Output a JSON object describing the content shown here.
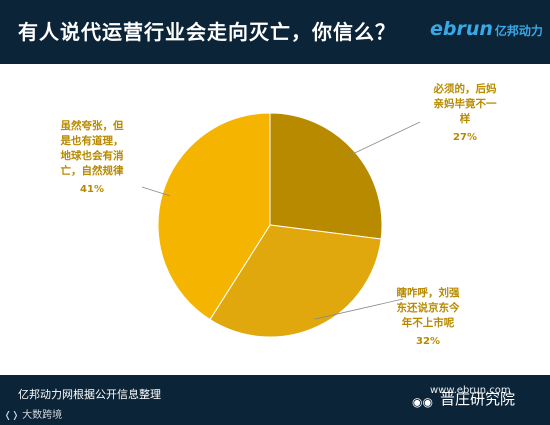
{
  "header": {
    "title": "有人说代运营行业会走向灭亡，你信么？",
    "brand_en": "ebrun",
    "brand_cn": "亿邦动力"
  },
  "footer": {
    "source": "亿邦动力网根据公开信息整理",
    "studio": "大数跨境",
    "site": "www.ebrun.com",
    "watermark": "晋庄研究院"
  },
  "chart_data": {
    "type": "pie",
    "slices": [
      {
        "label_lines": [
          "必须的，后妈",
          "亲妈毕竟不一",
          "样"
        ],
        "pct_label": "27%",
        "value": 27,
        "color": "#b88a00"
      },
      {
        "label_lines": [
          "瞎咋呼，刘强",
          "东还说京东今",
          "年不上市呢"
        ],
        "pct_label": "32%",
        "value": 32,
        "color": "#e0a80c"
      },
      {
        "label_lines": [
          "虽然夸张，但",
          "是也有道理，",
          "地球也会有消",
          "亡，自然规律"
        ],
        "pct_label": "41%",
        "value": 41,
        "color": "#f4b400"
      }
    ],
    "label_color": "#b88a00"
  }
}
